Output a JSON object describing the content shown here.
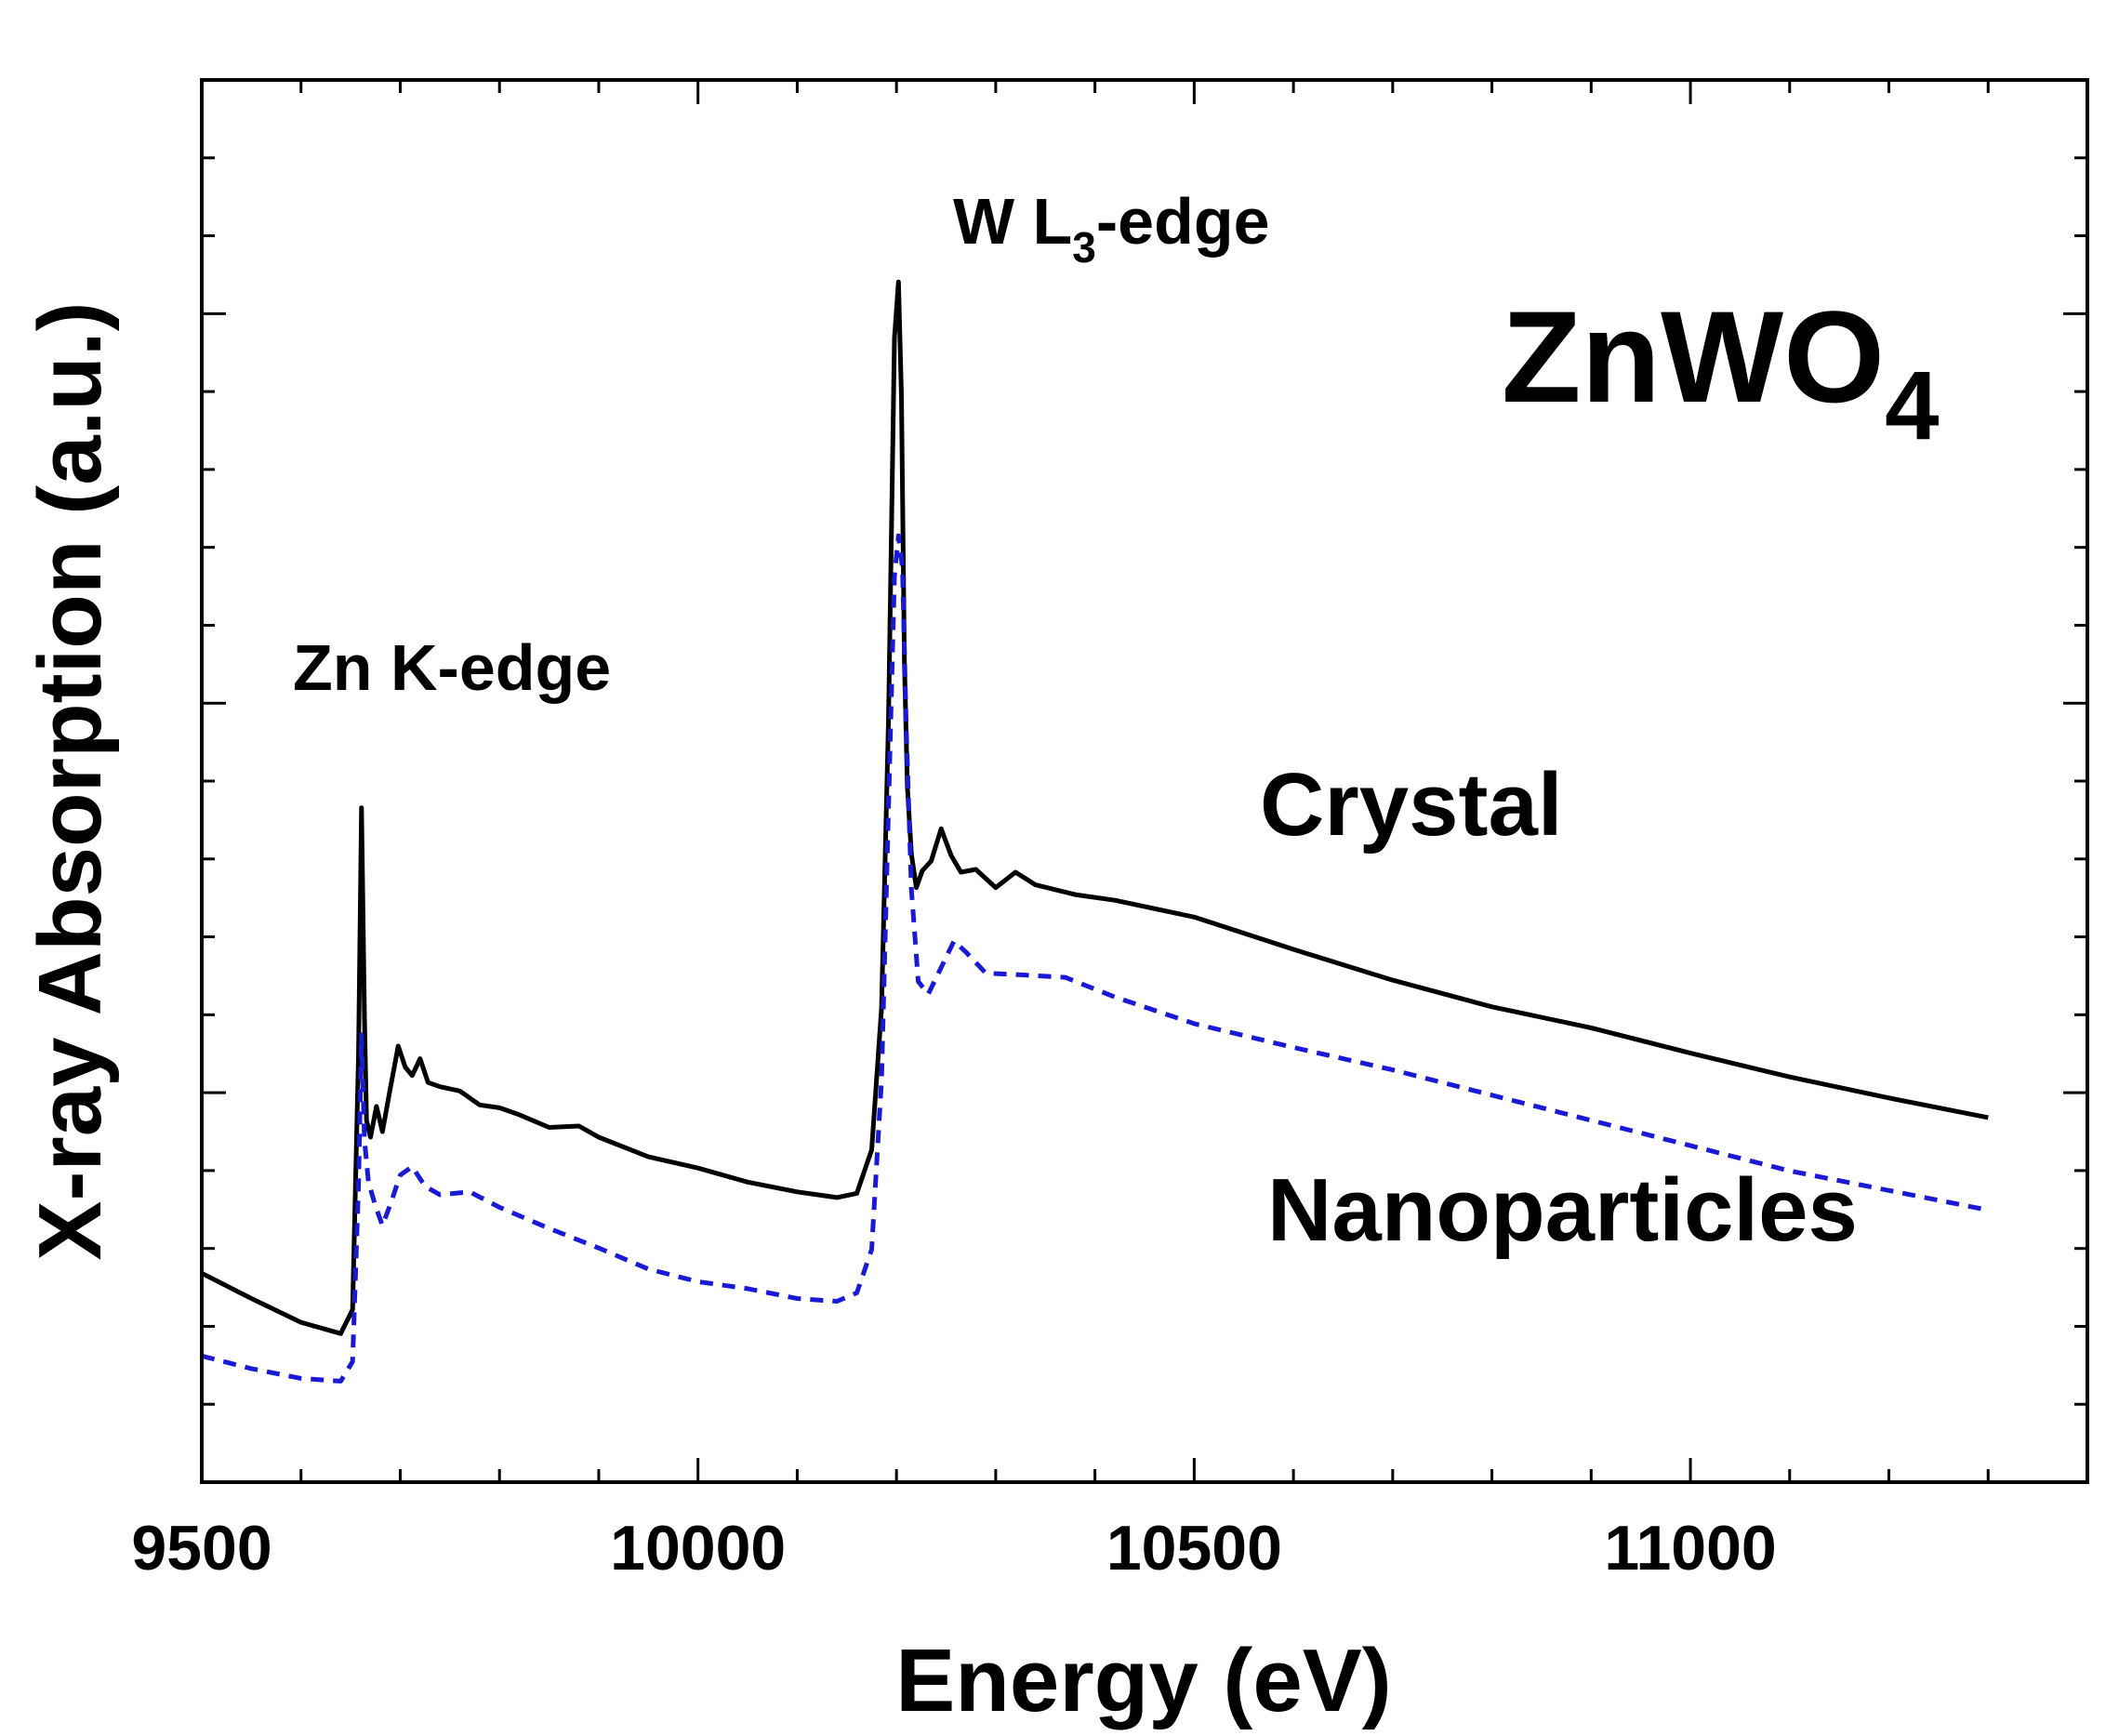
{
  "chart_data": {
    "type": "line",
    "title": "",
    "xlabel": "Energy (eV)",
    "ylabel": "X-ray Absorption (a.u.)",
    "xlim": [
      9500,
      11400
    ],
    "ylim": [
      0,
      1
    ],
    "x_ticks": [
      9500,
      10000,
      10500,
      11000
    ],
    "x_tick_labels": [
      "9500",
      "10000",
      "10500",
      "11000"
    ],
    "grid": false,
    "legend": "none",
    "annotations": {
      "compound": "ZnWO",
      "compound_subscript": "4",
      "zn_edge": "Zn K-edge",
      "w_edge_prefix": "W L",
      "w_edge_subscript": "3",
      "w_edge_suffix": "-edge",
      "crystal_label": "Crystal",
      "nano_label": "Nanoparticles"
    },
    "series": [
      {
        "name": "Crystal",
        "color": "#000000",
        "style": "solid",
        "x": [
          9500,
          9550,
          9600,
          9640,
          9652,
          9658,
          9661,
          9664,
          9666,
          9670,
          9676,
          9682,
          9690,
          9698,
          9705,
          9712,
          9720,
          9728,
          9740,
          9760,
          9780,
          9800,
          9820,
          9850,
          9880,
          9900,
          9950,
          10000,
          10050,
          10100,
          10140,
          10160,
          10175,
          10185,
          10192,
          10198,
          10202,
          10205,
          10208,
          10211,
          10215,
          10220,
          10226,
          10235,
          10245,
          10255,
          10265,
          10280,
          10300,
          10320,
          10340,
          10380,
          10420,
          10500,
          10600,
          10700,
          10800,
          10900,
          11000,
          11100,
          11200,
          11300
        ],
        "y": [
          0.149,
          0.131,
          0.114,
          0.106,
          0.123,
          0.305,
          0.481,
          0.331,
          0.258,
          0.246,
          0.268,
          0.25,
          0.281,
          0.311,
          0.296,
          0.29,
          0.302,
          0.285,
          0.282,
          0.279,
          0.269,
          0.267,
          0.262,
          0.253,
          0.254,
          0.246,
          0.232,
          0.224,
          0.214,
          0.207,
          0.203,
          0.206,
          0.237,
          0.338,
          0.544,
          0.816,
          0.856,
          0.775,
          0.585,
          0.496,
          0.448,
          0.424,
          0.436,
          0.443,
          0.466,
          0.447,
          0.435,
          0.437,
          0.424,
          0.435,
          0.426,
          0.419,
          0.415,
          0.403,
          0.38,
          0.358,
          0.339,
          0.324,
          0.306,
          0.289,
          0.274,
          0.26
        ]
      },
      {
        "name": "Nanoparticles",
        "color": "#1a1ad6",
        "style": "dashed",
        "x": [
          9500,
          9550,
          9600,
          9640,
          9652,
          9658,
          9661,
          9664,
          9668,
          9675,
          9682,
          9690,
          9700,
          9712,
          9725,
          9740,
          9770,
          9800,
          9850,
          9900,
          9950,
          10000,
          10050,
          10100,
          10140,
          10160,
          10175,
          10185,
          10192,
          10198,
          10202,
          10206,
          10210,
          10215,
          10222,
          10232,
          10245,
          10258,
          10270,
          10290,
          10320,
          10370,
          10420,
          10500,
          10600,
          10700,
          10800,
          10900,
          11000,
          11100,
          11200,
          11300
        ],
        "y": [
          0.09,
          0.081,
          0.074,
          0.072,
          0.086,
          0.211,
          0.319,
          0.244,
          0.214,
          0.197,
          0.183,
          0.198,
          0.219,
          0.225,
          0.211,
          0.205,
          0.207,
          0.196,
          0.181,
          0.167,
          0.152,
          0.143,
          0.138,
          0.131,
          0.129,
          0.135,
          0.166,
          0.287,
          0.481,
          0.646,
          0.675,
          0.652,
          0.535,
          0.423,
          0.357,
          0.348,
          0.367,
          0.386,
          0.378,
          0.363,
          0.362,
          0.36,
          0.346,
          0.327,
          0.31,
          0.294,
          0.276,
          0.258,
          0.24,
          0.222,
          0.208,
          0.194
        ]
      }
    ]
  }
}
